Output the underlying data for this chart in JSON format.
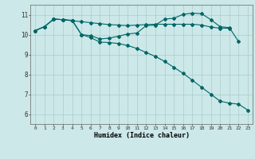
{
  "xlabel": "Humidex (Indice chaleur)",
  "bg_color": "#cce8e8",
  "grid_color": "#aacccc",
  "line_color": "#006666",
  "xlim": [
    -0.5,
    23.5
  ],
  "ylim": [
    5.5,
    11.5
  ],
  "yticks": [
    6,
    7,
    8,
    9,
    10,
    11
  ],
  "xticks": [
    0,
    1,
    2,
    3,
    4,
    5,
    6,
    7,
    8,
    9,
    10,
    11,
    12,
    13,
    14,
    15,
    16,
    17,
    18,
    19,
    20,
    21,
    22,
    23
  ],
  "line1_x": [
    0,
    1,
    2,
    3,
    4,
    5,
    6,
    7,
    8,
    9,
    10,
    11,
    12,
    13,
    14,
    15,
    16,
    17,
    18,
    19,
    20,
    21
  ],
  "line1_y": [
    10.2,
    10.4,
    10.78,
    10.75,
    10.7,
    10.65,
    10.6,
    10.55,
    10.5,
    10.48,
    10.45,
    10.48,
    10.5,
    10.52,
    10.52,
    10.52,
    10.52,
    10.52,
    10.48,
    10.38,
    10.32,
    10.32
  ],
  "line2_x": [
    0,
    1,
    2,
    3,
    4,
    5,
    6,
    7,
    8,
    9,
    10,
    11,
    12,
    13,
    14,
    15,
    16,
    17,
    18,
    19,
    20,
    21,
    22
  ],
  "line2_y": [
    10.2,
    10.4,
    10.78,
    10.75,
    10.72,
    10.0,
    9.95,
    9.78,
    9.82,
    9.92,
    10.03,
    10.08,
    10.45,
    10.48,
    10.78,
    10.82,
    11.02,
    11.08,
    11.05,
    10.75,
    10.4,
    10.35,
    9.65
  ],
  "line3_x": [
    0,
    1,
    2,
    3,
    4,
    5,
    6,
    7,
    8,
    9,
    10,
    11,
    12,
    13,
    14,
    15,
    16,
    17,
    18,
    19,
    20,
    21,
    22,
    23
  ],
  "line3_y": [
    10.2,
    10.4,
    10.78,
    10.75,
    10.7,
    10.0,
    9.85,
    9.62,
    9.6,
    9.55,
    9.45,
    9.3,
    9.1,
    8.9,
    8.65,
    8.35,
    8.05,
    7.7,
    7.35,
    7.0,
    6.65,
    6.55,
    6.5,
    6.2
  ]
}
